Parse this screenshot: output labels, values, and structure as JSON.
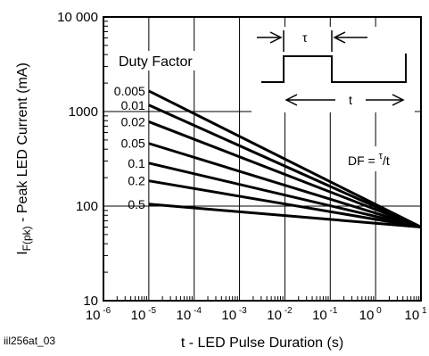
{
  "chart_data": {
    "type": "line",
    "x_scale": "log",
    "y_scale": "log",
    "xlim": [
      1e-06,
      10
    ],
    "ylim": [
      10,
      10000
    ],
    "x_tick_labels": [
      {
        "base": "10",
        "exp": "-6"
      },
      {
        "base": "10",
        "exp": "-5"
      },
      {
        "base": "10",
        "exp": "-4"
      },
      {
        "base": "10",
        "exp": "-3"
      },
      {
        "base": "10",
        "exp": "-2"
      },
      {
        "base": "10",
        "exp": "-1"
      },
      {
        "base": "10",
        "exp": "0"
      },
      {
        "base": "10",
        "exp": "1"
      }
    ],
    "y_tick_labels": [
      "10",
      "100",
      "1000",
      "10 000"
    ],
    "xlabel": "t - LED Pulse Duration (s)",
    "ylabel": {
      "main": "I",
      "sub": "F(pk)",
      "rest": " - Peak LED Current (mA)"
    },
    "legend_title": "Duty Factor",
    "series": [
      {
        "name": "0.005",
        "x": [
          1e-05,
          10
        ],
        "y": [
          1650,
          60
        ]
      },
      {
        "name": "0.01",
        "x": [
          1e-05,
          10
        ],
        "y": [
          1170,
          60
        ]
      },
      {
        "name": "0.02",
        "x": [
          1e-05,
          10
        ],
        "y": [
          780,
          60
        ]
      },
      {
        "name": "0.05",
        "x": [
          1e-05,
          10
        ],
        "y": [
          460,
          60
        ]
      },
      {
        "name": "0.1",
        "x": [
          1e-05,
          10
        ],
        "y": [
          285,
          60
        ]
      },
      {
        "name": "0.2",
        "x": [
          1e-05,
          10
        ],
        "y": [
          185,
          60
        ]
      },
      {
        "name": "0.5",
        "x": [
          1e-05,
          10
        ],
        "y": [
          105,
          60
        ]
      }
    ],
    "grid": true,
    "annotations": {
      "df_formula": {
        "prefix": "DF = ",
        "num": "τ",
        "rest": "/t"
      },
      "tau_label": "τ",
      "t_label": "t",
      "figure_id": "iil256at_03"
    }
  }
}
